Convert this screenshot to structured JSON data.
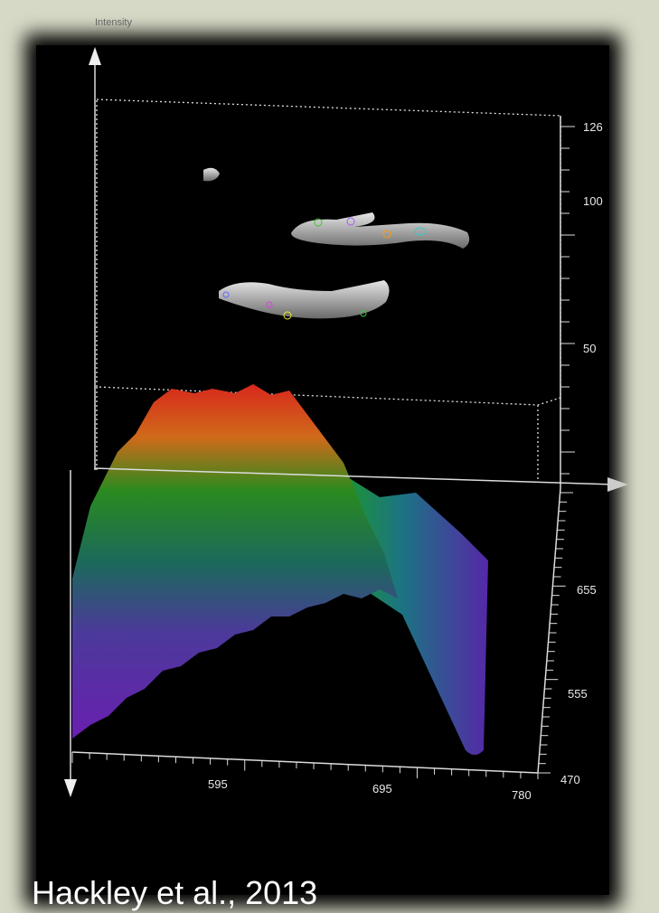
{
  "figure": {
    "axis_label": "Intensity",
    "right_top_ticks": [
      126,
      100,
      50
    ],
    "right_bottom_ticks": [
      655,
      555,
      470
    ],
    "bottom_ticks": [
      595,
      695,
      780
    ]
  },
  "caption": "Hackley et al., 2013"
}
